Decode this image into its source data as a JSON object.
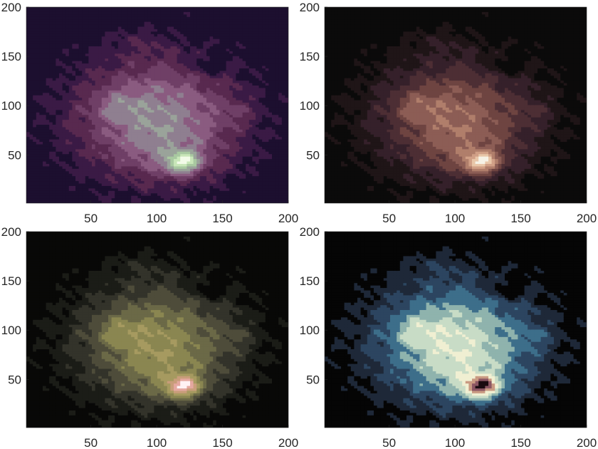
{
  "chart_data": [
    {
      "type": "heatmap",
      "chart_kind": "filled-contour",
      "colormap": "purple-magenta-green",
      "colors": [
        "#1c0f2f",
        "#3a1a45",
        "#58294f",
        "#6f3f66",
        "#8a5b80",
        "#8f7f90",
        "#9aa39a",
        "#a8c8a0",
        "#c8e6b8",
        "#f2fbe8"
      ],
      "xlim": [
        1,
        200
      ],
      "ylim": [
        1,
        200
      ],
      "xticks": [
        "50",
        "100",
        "150",
        "200"
      ],
      "yticks": [
        "50",
        "100",
        "150",
        "200"
      ],
      "grid": false
    },
    {
      "type": "heatmap",
      "chart_kind": "filled-contour",
      "colormap": "black-maroon-peach",
      "colors": [
        "#0b0a0a",
        "#1f1517",
        "#35202a",
        "#4d2e34",
        "#6e4441",
        "#8c5d55",
        "#b07e6b",
        "#d09f86",
        "#e8c6a8",
        "#f6f2e6"
      ],
      "xlim": [
        1,
        200
      ],
      "ylim": [
        1,
        200
      ],
      "xticks": [
        "50",
        "100",
        "150",
        "200"
      ],
      "yticks": [
        "50",
        "100",
        "150",
        "200"
      ],
      "grid": false
    },
    {
      "type": "heatmap",
      "chart_kind": "filled-contour",
      "colormap": "black-olive-pink",
      "colors": [
        "#080807",
        "#1b1c17",
        "#33332a",
        "#4e4c3a",
        "#6b6947",
        "#8a8651",
        "#a69a60",
        "#c89d7a",
        "#e4a8a0",
        "#fff2f4"
      ],
      "xlim": [
        1,
        200
      ],
      "ylim": [
        1,
        200
      ],
      "xticks": [
        "50",
        "100",
        "150",
        "200"
      ],
      "yticks": [
        "50",
        "100",
        "150",
        "200"
      ],
      "grid": false
    },
    {
      "type": "heatmap",
      "chart_kind": "filled-contour",
      "colormap": "navy-teal-cream-maroon",
      "colors": [
        "#050505",
        "#1e2838",
        "#2c4560",
        "#3d6e8a",
        "#8fb3ad",
        "#c8dcc6",
        "#f0efd2",
        "#c99a82",
        "#8b5663",
        "#1a0b10"
      ],
      "xlim": [
        1,
        200
      ],
      "ylim": [
        1,
        200
      ],
      "xticks": [
        "50",
        "100",
        "150",
        "200"
      ],
      "yticks": [
        "50",
        "100",
        "150",
        "200"
      ],
      "grid": false
    }
  ]
}
